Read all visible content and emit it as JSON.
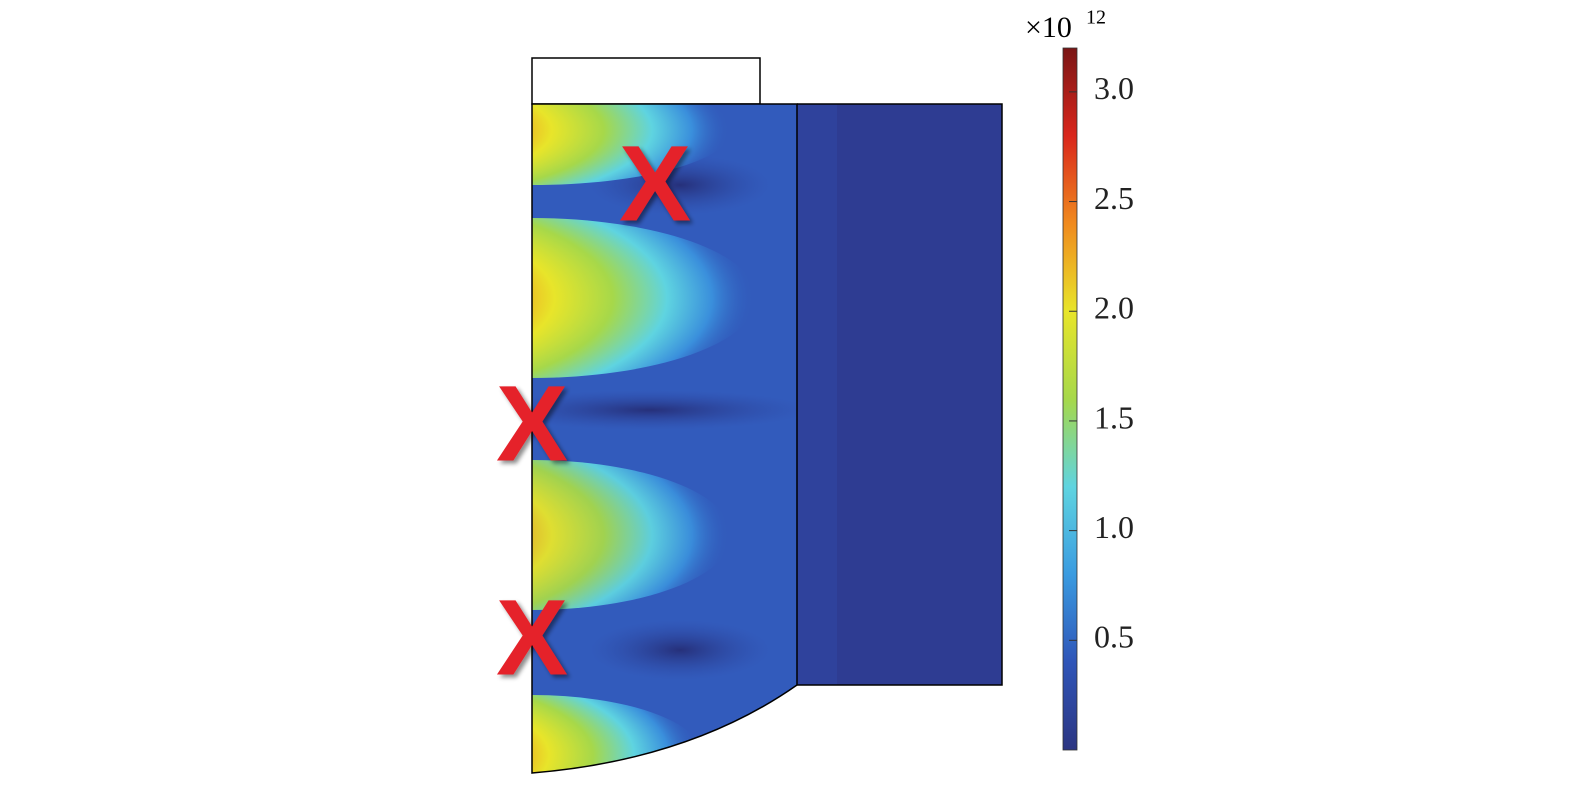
{
  "chart_data": {
    "type": "field",
    "colorbar": {
      "clim": [
        0,
        3.2
      ],
      "ticks": [
        0.5,
        {
          "value": 1,
          "label": "1.0"
        },
        1.5,
        {
          "value": 2,
          "label": "2.0"
        },
        2.5,
        {
          "value": 3,
          "label": "3.0"
        }
      ],
      "scale_label": "×10",
      "scale_exponent": "12",
      "colors": [
        "#2c3582",
        "#2f55b8",
        "#3a9be0",
        "#5fd4e0",
        "#a6d84a",
        "#e8e52a",
        "#f08a1e",
        "#d9261c",
        "#7a1616"
      ]
    },
    "annotations": [
      "X",
      "X",
      "X"
    ]
  }
}
